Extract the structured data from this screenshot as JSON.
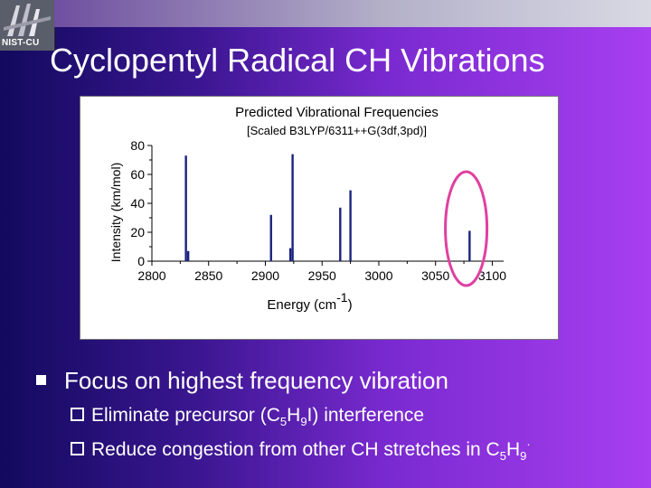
{
  "slide": {
    "title": "Cyclopentyl Radical CH Vibrations",
    "logo_text": "NIST-CU",
    "bullet_main": "Focus on highest frequency vibration",
    "sub1": {
      "before": "Eliminate precursor (C",
      "s1": "5",
      "mid1": "H",
      "s2": "9",
      "after": "I) interference"
    },
    "sub2": {
      "before": "Reduce congestion from other CH stretches in C",
      "s1": "5",
      "mid1": "H",
      "s2": "9",
      "sup": "·"
    }
  },
  "chart_data": {
    "type": "bar",
    "title": "Predicted Vibrational Frequencies",
    "subtitle": "[Scaled B3LYP/6311++G(3df,3pd)]",
    "xlabel_main": "Energy (cm",
    "xlabel_sup": "-1",
    "xlabel_end": ")",
    "ylabel": "Intensity (km/mol)",
    "xlim": [
      2800,
      3110
    ],
    "ylim": [
      0,
      80
    ],
    "xticks": [
      "2800",
      "2850",
      "2900",
      "2950",
      "3000",
      "3050",
      "3100"
    ],
    "xtick_values": [
      2800,
      2850,
      2900,
      2950,
      3000,
      3050,
      3100
    ],
    "yticks": [
      "0",
      "20",
      "40",
      "60",
      "80"
    ],
    "ytick_values": [
      0,
      20,
      40,
      60,
      80
    ],
    "x": [
      2830,
      2832,
      2905,
      2922,
      2924,
      2966,
      2975,
      3080
    ],
    "values": [
      73,
      7,
      32,
      9,
      74,
      37,
      49,
      21
    ],
    "bar_color": "#1a237e",
    "highlight_color": "#e040a0",
    "highlight_center_x": 3077
  }
}
